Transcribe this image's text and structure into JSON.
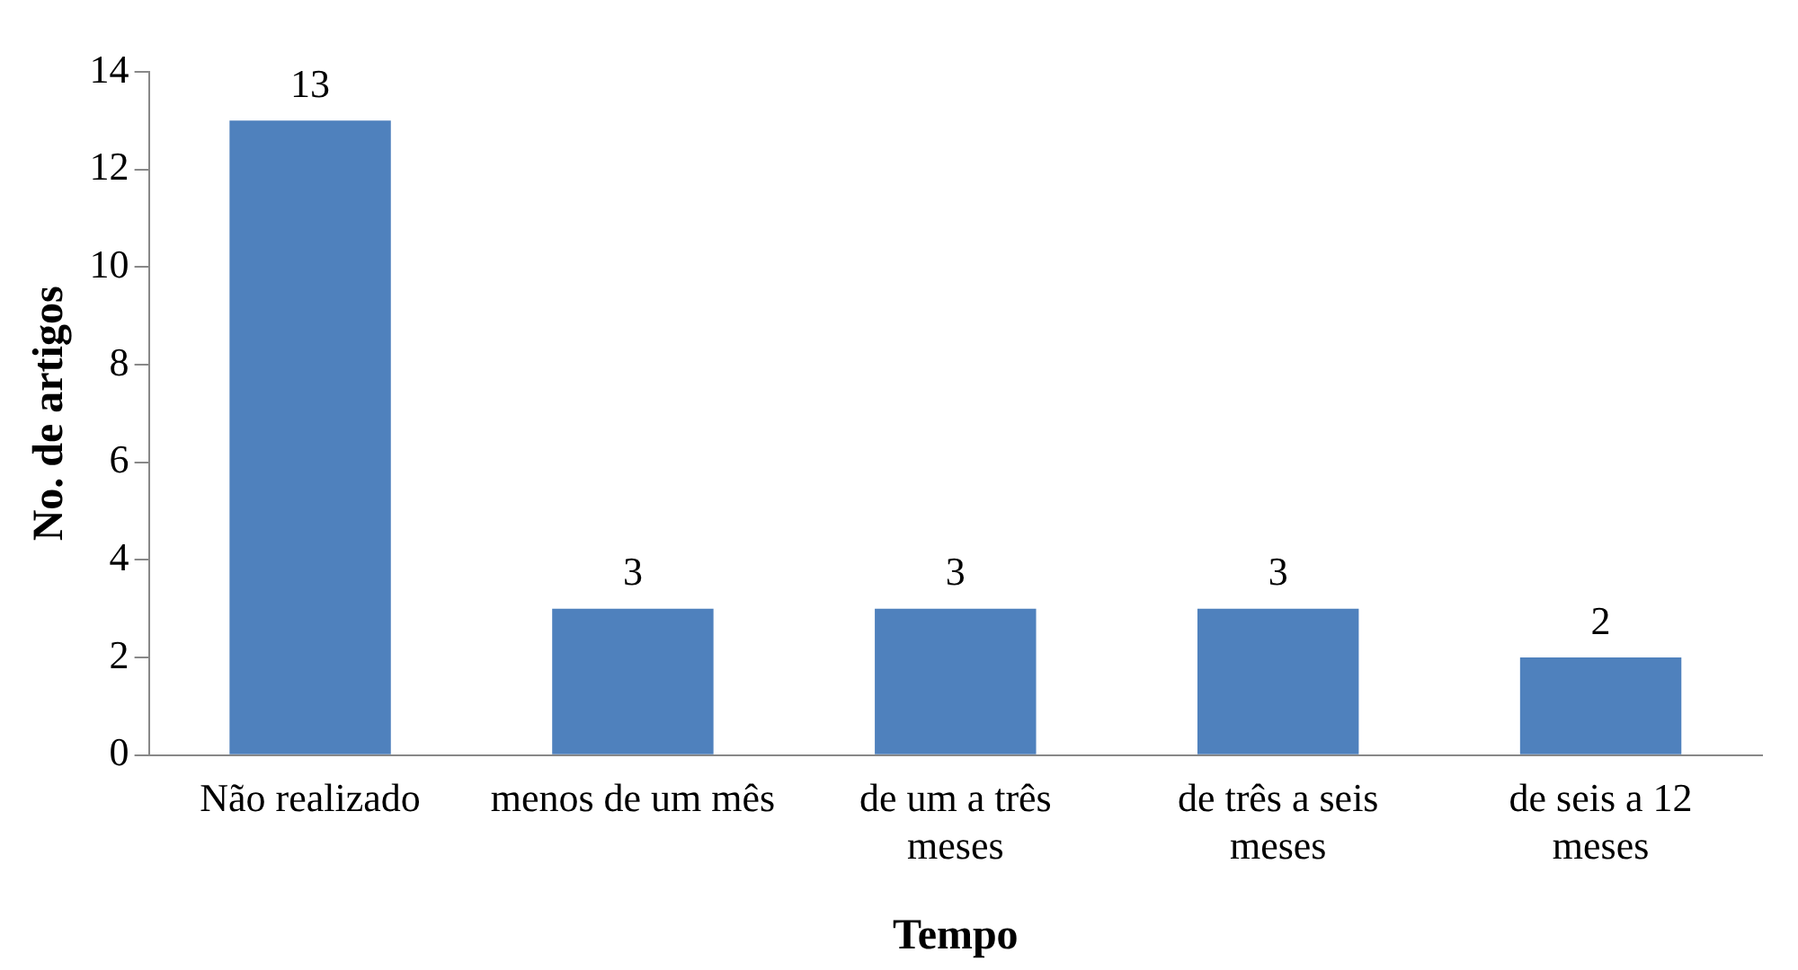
{
  "chart_data": {
    "type": "bar",
    "xlabel": "Tempo",
    "ylabel": "No. de artigos",
    "categories": [
      "Não realizado",
      "menos de um mês",
      "de um a três meses",
      "de três a seis meses",
      "de seis a 12 meses"
    ],
    "values": [
      13,
      3,
      3,
      3,
      2
    ],
    "color": "#4f81bd",
    "ylim": [
      0,
      14
    ],
    "yticks": [
      0,
      2,
      4,
      6,
      8,
      10,
      12,
      14
    ],
    "grid": false,
    "legend": false,
    "data_labels": true
  }
}
